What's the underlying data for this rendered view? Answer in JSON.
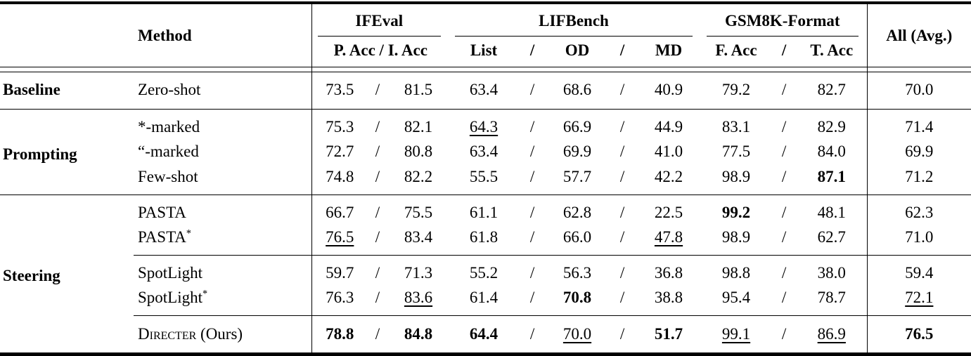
{
  "colors": {
    "text": "#000000",
    "background": "#ffffff",
    "rule": "#000000"
  },
  "header": {
    "method": "Method",
    "avg": "All (Avg.)",
    "groups": [
      {
        "label": "IFEval",
        "sub": [
          "P. Acc / I. Acc"
        ]
      },
      {
        "label": "LIFBench",
        "sub": [
          "List",
          "/",
          "OD",
          "/",
          "MD"
        ]
      },
      {
        "label": "GSM8K-Format",
        "sub": [
          "F. Acc",
          "/",
          "T. Acc"
        ]
      }
    ]
  },
  "sections": [
    {
      "group": "Baseline",
      "rows": [
        {
          "method": {
            "t": "Zero-shot"
          },
          "values": [
            "73.5",
            "81.5",
            "63.4",
            "68.6",
            "40.9",
            "79.2",
            "82.7",
            "70.0"
          ]
        }
      ]
    },
    {
      "group": "Prompting",
      "rows": [
        {
          "method": {
            "t": "*-marked"
          },
          "values": [
            "75.3",
            "82.1",
            {
              "t": "64.3",
              "u": true
            },
            "66.9",
            "44.9",
            "83.1",
            "82.9",
            "71.4"
          ]
        },
        {
          "method": {
            "t": "“-marked"
          },
          "values": [
            "72.7",
            "80.8",
            "63.4",
            "69.9",
            "41.0",
            "77.5",
            "84.0",
            "69.9"
          ]
        },
        {
          "method": {
            "t": "Few-shot"
          },
          "values": [
            "74.8",
            "82.2",
            "55.5",
            "57.7",
            "42.2",
            "98.9",
            {
              "t": "87.1",
              "b": true
            },
            "71.2"
          ]
        }
      ]
    },
    {
      "group": "Steering",
      "rows": [
        {
          "method": {
            "t": "PASTA"
          },
          "values": [
            "66.7",
            "75.5",
            "61.1",
            "62.8",
            "22.5",
            {
              "t": "99.2",
              "b": true
            },
            "48.1",
            "62.3"
          ]
        },
        {
          "method": {
            "t": "PASTA",
            "sup": "*"
          },
          "values": [
            {
              "t": "76.5",
              "u": true
            },
            "83.4",
            "61.8",
            "66.0",
            {
              "t": "47.8",
              "u": true
            },
            "98.9",
            "62.7",
            "71.0"
          ]
        },
        {
          "method": {
            "t": "SpotLight"
          },
          "values": [
            "59.7",
            "71.3",
            "55.2",
            "56.3",
            "36.8",
            "98.8",
            "38.0",
            "59.4"
          ]
        },
        {
          "method": {
            "t": "SpotLight",
            "sup": "*"
          },
          "values": [
            "76.3",
            {
              "t": "83.6",
              "u": true
            },
            "61.4",
            {
              "t": "70.8",
              "b": true
            },
            "38.8",
            "95.4",
            "78.7",
            {
              "t": "72.1",
              "u": true
            }
          ]
        },
        {
          "method": {
            "t": "Directer",
            "sc": true,
            "rest": " (Ours)"
          },
          "values": [
            {
              "t": "78.8",
              "b": true
            },
            {
              "t": "84.8",
              "b": true
            },
            {
              "t": "64.4",
              "b": true
            },
            {
              "t": "70.0",
              "u": true
            },
            {
              "t": "51.7",
              "b": true
            },
            {
              "t": "99.1",
              "u": true
            },
            {
              "t": "86.9",
              "u": true
            },
            {
              "t": "76.5",
              "b": true
            }
          ]
        }
      ]
    }
  ]
}
